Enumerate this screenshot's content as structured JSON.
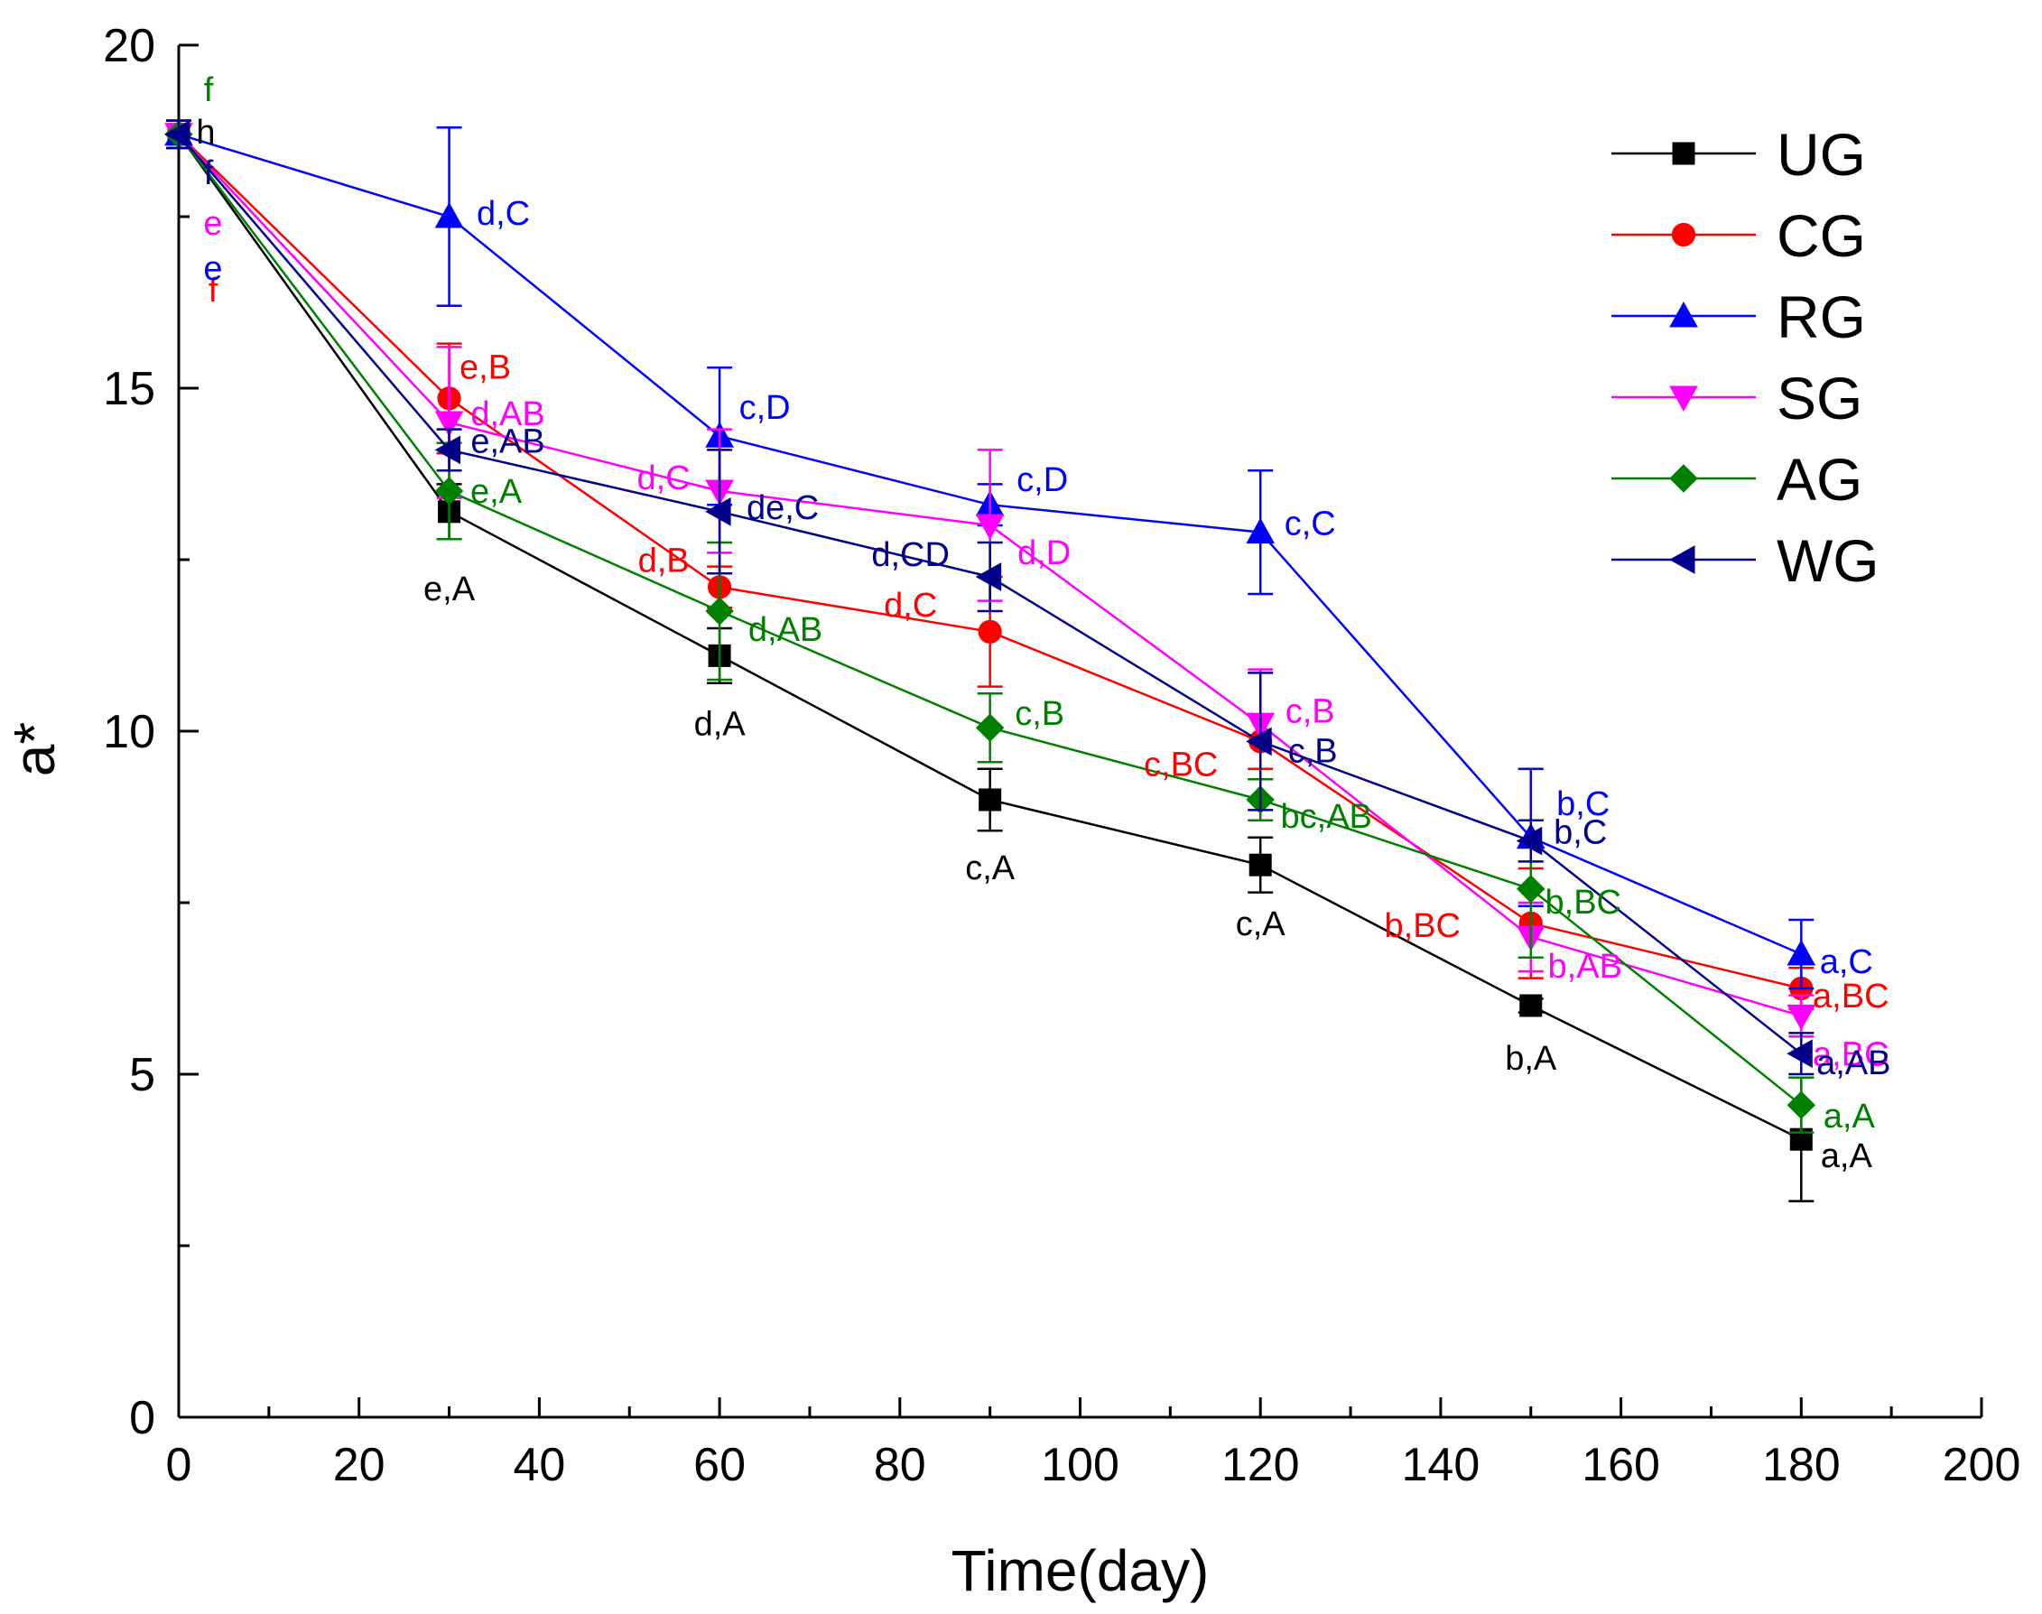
{
  "chart_data": {
    "type": "line",
    "title": "",
    "xlabel": "Time(day)",
    "ylabel": "a*",
    "xlim": [
      0,
      200
    ],
    "ylim": [
      0,
      20
    ],
    "xticks": [
      0,
      20,
      40,
      60,
      80,
      100,
      120,
      140,
      160,
      180,
      200
    ],
    "xtick_labels": [
      "0",
      "20",
      "40",
      "60",
      "80",
      "100",
      "120",
      "140",
      "160",
      "180",
      "200"
    ],
    "yticks": [
      0,
      5,
      10,
      15,
      20
    ],
    "ytick_labels": [
      "0",
      "5",
      "10",
      "15",
      "20"
    ],
    "grid": false,
    "legend_position": "top-right",
    "x": [
      0,
      30,
      60,
      90,
      120,
      150,
      180
    ],
    "series": [
      {
        "name": "UG",
        "color": "#000000",
        "marker": "square",
        "values": [
          18.7,
          13.2,
          11.1,
          9.0,
          8.05,
          6.0,
          4.05
        ],
        "errors": [
          0.2,
          0.4,
          0.4,
          0.45,
          0.4,
          0.1,
          0.9
        ],
        "labels": [
          "h",
          "e,A",
          "d,A",
          "c,A",
          "c,A",
          "b,A",
          "a,A"
        ]
      },
      {
        "name": "CG",
        "color": "#ff0000",
        "marker": "circle",
        "values": [
          18.7,
          14.85,
          12.1,
          11.45,
          9.85,
          7.2,
          6.25
        ],
        "errors": [
          0.2,
          0.8,
          0.3,
          0.8,
          0.4,
          0.8,
          0.3
        ],
        "labels": [
          "f",
          "e,B",
          "d,B",
          "d,C",
          "c,BC",
          "b,BC",
          "a,BC"
        ]
      },
      {
        "name": "RG",
        "color": "#0000ff",
        "marker": "triangle-up",
        "values": [
          18.7,
          17.5,
          14.3,
          13.3,
          12.9,
          8.45,
          6.75
        ],
        "errors": [
          0.2,
          1.3,
          1.0,
          0.3,
          0.9,
          1.0,
          0.5
        ],
        "labels": [
          "e",
          "d,C",
          "c,D",
          "c,D",
          "c,C",
          "b,C",
          "a,C"
        ]
      },
      {
        "name": "SG",
        "color": "#ff00ff",
        "marker": "triangle-down",
        "values": [
          18.7,
          14.5,
          13.5,
          13.0,
          10.1,
          7.0,
          5.85
        ],
        "errors": [
          0.2,
          1.1,
          0.9,
          1.1,
          0.8,
          0.5,
          0.3
        ],
        "labels": [
          "e",
          "d,AB",
          "d,C",
          "d,D",
          "c,B",
          "b,AB",
          "a,BC"
        ]
      },
      {
        "name": "AG",
        "color": "#008000",
        "marker": "diamond",
        "values": [
          18.7,
          13.5,
          11.75,
          10.05,
          9.0,
          7.7,
          4.55
        ],
        "errors": [
          0.2,
          0.7,
          1.0,
          0.5,
          0.3,
          1.0,
          0.4
        ],
        "labels": [
          "f",
          "e,A",
          "d,AB",
          "c,B",
          "bc,AB",
          "b,BC",
          "a,A"
        ]
      },
      {
        "name": "WG",
        "color": "#00008b",
        "marker": "triangle-left",
        "values": [
          18.7,
          14.1,
          13.2,
          12.25,
          9.85,
          8.4,
          5.3
        ],
        "errors": [
          0.2,
          0.3,
          0.9,
          0.5,
          1.0,
          0.3,
          0.3
        ],
        "labels": [
          "f",
          "e,AB",
          "de,C",
          "d,CD",
          "c,B",
          "b,C",
          "a,AB"
        ]
      }
    ]
  }
}
